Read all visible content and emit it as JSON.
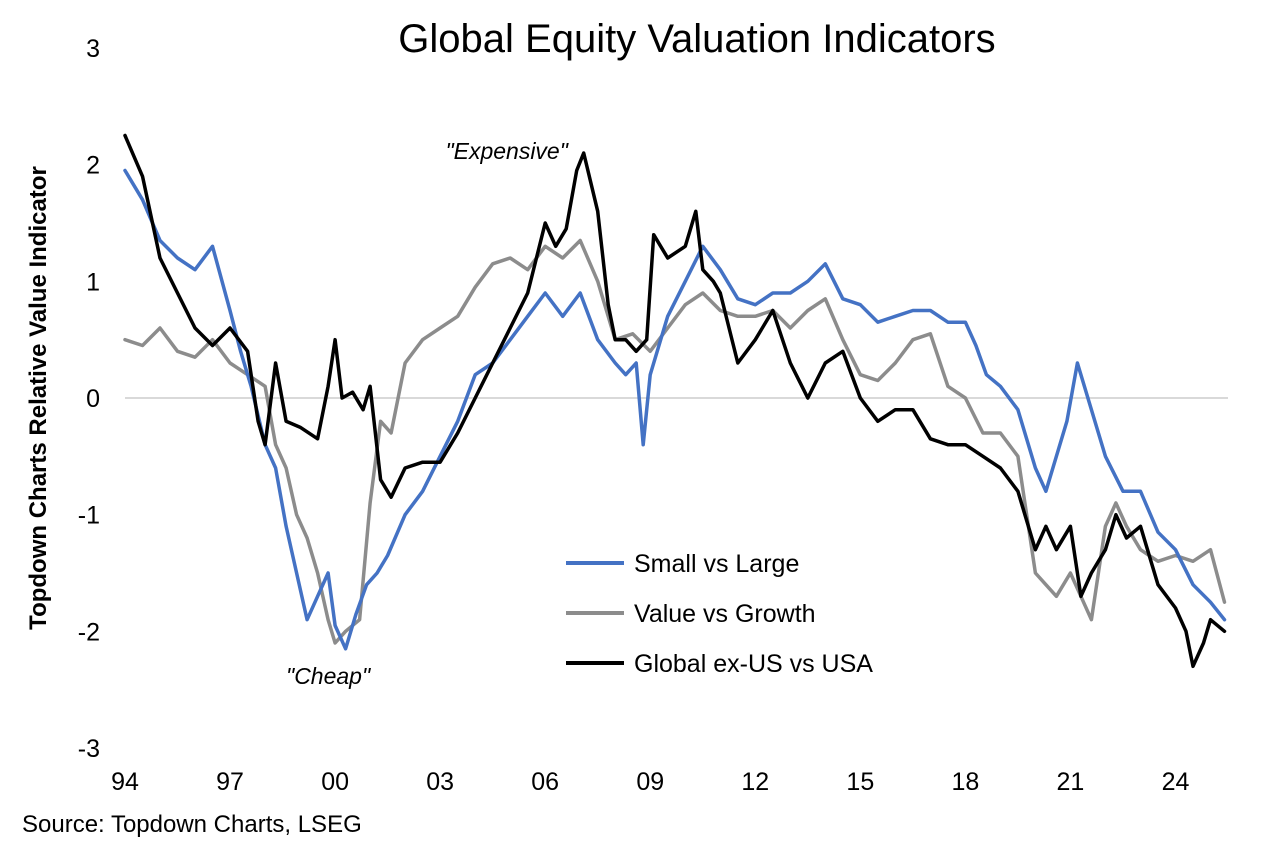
{
  "chart_data": {
    "type": "line",
    "title": "Global Equity Valuation Indicators",
    "ylabel": "Topdown Charts Relative Value Indicator",
    "xlabel": "",
    "ylim": [
      -3,
      3
    ],
    "y_ticks": [
      "3",
      "2",
      "1",
      "0",
      "-1",
      "-2",
      "-3"
    ],
    "y_tick_values": [
      3,
      2,
      1,
      0,
      -1,
      -2,
      -3
    ],
    "x_range": [
      1994,
      2025.5
    ],
    "x_ticks": [
      "94",
      "97",
      "00",
      "03",
      "06",
      "09",
      "12",
      "15",
      "18",
      "21",
      "24"
    ],
    "x_tick_values": [
      1994,
      1997,
      2000,
      2003,
      2006,
      2009,
      2012,
      2015,
      2018,
      2021,
      2024
    ],
    "grid": false,
    "zero_line": true,
    "legend_position": "bottom-right",
    "annotations": [
      {
        "text": "\"Expensive\"",
        "x": 2004.9,
        "y": 2.05
      },
      {
        "text": "\"Cheap\"",
        "x": 1999.8,
        "y": -2.45
      }
    ],
    "series": [
      {
        "name": "Small vs Large",
        "color": "#4472C4",
        "x": [
          1994.0,
          1994.5,
          1995.0,
          1995.5,
          1996.0,
          1996.5,
          1997.0,
          1997.3,
          1997.6,
          1998.0,
          1998.3,
          1998.6,
          1998.9,
          1999.2,
          1999.5,
          1999.8,
          2000.0,
          2000.3,
          2000.6,
          2000.9,
          2001.2,
          2001.5,
          2002.0,
          2002.5,
          2003.0,
          2003.5,
          2004.0,
          2004.5,
          2005.0,
          2005.5,
          2006.0,
          2006.5,
          2007.0,
          2007.5,
          2008.0,
          2008.3,
          2008.6,
          2008.8,
          2009.0,
          2009.5,
          2010.0,
          2010.5,
          2011.0,
          2011.5,
          2012.0,
          2012.5,
          2013.0,
          2013.5,
          2014.0,
          2014.5,
          2015.0,
          2015.5,
          2016.0,
          2016.5,
          2017.0,
          2017.5,
          2018.0,
          2018.3,
          2018.6,
          2019.0,
          2019.5,
          2020.0,
          2020.3,
          2020.6,
          2020.9,
          2021.2,
          2021.5,
          2022.0,
          2022.5,
          2023.0,
          2023.5,
          2024.0,
          2024.5,
          2025.0,
          2025.4
        ],
        "values": [
          1.95,
          1.7,
          1.35,
          1.2,
          1.1,
          1.3,
          0.75,
          0.4,
          0.1,
          -0.4,
          -0.6,
          -1.1,
          -1.5,
          -1.9,
          -1.7,
          -1.5,
          -1.95,
          -2.15,
          -1.85,
          -1.6,
          -1.5,
          -1.35,
          -1.0,
          -0.8,
          -0.5,
          -0.2,
          0.2,
          0.3,
          0.5,
          0.7,
          0.9,
          0.7,
          0.9,
          0.5,
          0.3,
          0.2,
          0.3,
          -0.4,
          0.2,
          0.7,
          1.0,
          1.3,
          1.1,
          0.85,
          0.8,
          0.9,
          0.9,
          1.0,
          1.15,
          0.85,
          0.8,
          0.65,
          0.7,
          0.75,
          0.75,
          0.65,
          0.65,
          0.45,
          0.2,
          0.1,
          -0.1,
          -0.6,
          -0.8,
          -0.5,
          -0.2,
          0.3,
          0.0,
          -0.5,
          -0.8,
          -0.8,
          -1.15,
          -1.3,
          -1.6,
          -1.75,
          -1.9
        ]
      },
      {
        "name": "Value vs Growth",
        "color": "#8C8C8C",
        "x": [
          1994.0,
          1994.5,
          1995.0,
          1995.5,
          1996.0,
          1996.5,
          1997.0,
          1997.5,
          1998.0,
          1998.3,
          1998.6,
          1998.9,
          1999.2,
          1999.5,
          1999.8,
          2000.0,
          2000.3,
          2000.7,
          2001.0,
          2001.3,
          2001.6,
          2002.0,
          2002.5,
          2003.0,
          2003.5,
          2004.0,
          2004.5,
          2005.0,
          2005.5,
          2006.0,
          2006.5,
          2007.0,
          2007.5,
          2008.0,
          2008.5,
          2009.0,
          2009.5,
          2010.0,
          2010.5,
          2011.0,
          2011.5,
          2012.0,
          2012.5,
          2013.0,
          2013.5,
          2014.0,
          2014.5,
          2015.0,
          2015.5,
          2016.0,
          2016.5,
          2017.0,
          2017.5,
          2018.0,
          2018.5,
          2019.0,
          2019.5,
          2020.0,
          2020.3,
          2020.6,
          2021.0,
          2021.3,
          2021.6,
          2022.0,
          2022.3,
          2022.6,
          2023.0,
          2023.5,
          2024.0,
          2024.5,
          2025.0,
          2025.4
        ],
        "values": [
          0.5,
          0.45,
          0.6,
          0.4,
          0.35,
          0.5,
          0.3,
          0.2,
          0.1,
          -0.4,
          -0.6,
          -1.0,
          -1.2,
          -1.5,
          -1.9,
          -2.1,
          -2.0,
          -1.9,
          -0.9,
          -0.2,
          -0.3,
          0.3,
          0.5,
          0.6,
          0.7,
          0.95,
          1.15,
          1.2,
          1.1,
          1.3,
          1.2,
          1.35,
          1.0,
          0.5,
          0.55,
          0.4,
          0.6,
          0.8,
          0.9,
          0.75,
          0.7,
          0.7,
          0.75,
          0.6,
          0.75,
          0.85,
          0.5,
          0.2,
          0.15,
          0.3,
          0.5,
          0.55,
          0.1,
          0.0,
          -0.3,
          -0.3,
          -0.5,
          -1.5,
          -1.6,
          -1.7,
          -1.5,
          -1.7,
          -1.9,
          -1.1,
          -0.9,
          -1.1,
          -1.3,
          -1.4,
          -1.35,
          -1.4,
          -1.3,
          -1.75
        ]
      },
      {
        "name": "Global ex-US vs USA",
        "color": "#000000",
        "x": [
          1994.0,
          1994.5,
          1995.0,
          1995.5,
          1996.0,
          1996.5,
          1997.0,
          1997.5,
          1997.8,
          1998.0,
          1998.3,
          1998.6,
          1999.0,
          1999.5,
          1999.8,
          2000.0,
          2000.2,
          2000.5,
          2000.8,
          2001.0,
          2001.3,
          2001.6,
          2002.0,
          2002.5,
          2003.0,
          2003.5,
          2004.0,
          2004.5,
          2005.0,
          2005.5,
          2006.0,
          2006.3,
          2006.6,
          2006.9,
          2007.1,
          2007.5,
          2007.8,
          2008.0,
          2008.3,
          2008.6,
          2008.9,
          2009.1,
          2009.5,
          2010.0,
          2010.3,
          2010.5,
          2010.8,
          2011.0,
          2011.5,
          2012.0,
          2012.5,
          2013.0,
          2013.5,
          2014.0,
          2014.5,
          2015.0,
          2015.5,
          2016.0,
          2016.5,
          2017.0,
          2017.5,
          2018.0,
          2018.5,
          2019.0,
          2019.5,
          2020.0,
          2020.3,
          2020.6,
          2021.0,
          2021.3,
          2021.6,
          2022.0,
          2022.3,
          2022.6,
          2023.0,
          2023.5,
          2024.0,
          2024.3,
          2024.5,
          2024.8,
          2025.0,
          2025.4
        ],
        "values": [
          2.25,
          1.9,
          1.2,
          0.9,
          0.6,
          0.45,
          0.6,
          0.4,
          -0.2,
          -0.4,
          0.3,
          -0.2,
          -0.25,
          -0.35,
          0.1,
          0.5,
          0.0,
          0.05,
          -0.1,
          0.1,
          -0.7,
          -0.85,
          -0.6,
          -0.55,
          -0.55,
          -0.3,
          0.0,
          0.3,
          0.6,
          0.9,
          1.5,
          1.3,
          1.45,
          1.95,
          2.1,
          1.6,
          0.8,
          0.5,
          0.5,
          0.4,
          0.5,
          1.4,
          1.2,
          1.3,
          1.6,
          1.1,
          1.0,
          0.9,
          0.3,
          0.5,
          0.75,
          0.3,
          0.0,
          0.3,
          0.4,
          0.0,
          -0.2,
          -0.1,
          -0.1,
          -0.35,
          -0.4,
          -0.4,
          -0.5,
          -0.6,
          -0.8,
          -1.3,
          -1.1,
          -1.3,
          -1.1,
          -1.7,
          -1.5,
          -1.3,
          -1.0,
          -1.2,
          -1.1,
          -1.6,
          -1.8,
          -2.0,
          -2.3,
          -2.1,
          -1.9,
          -2.0
        ]
      }
    ]
  },
  "source": "Source: Topdown Charts, LSEG"
}
